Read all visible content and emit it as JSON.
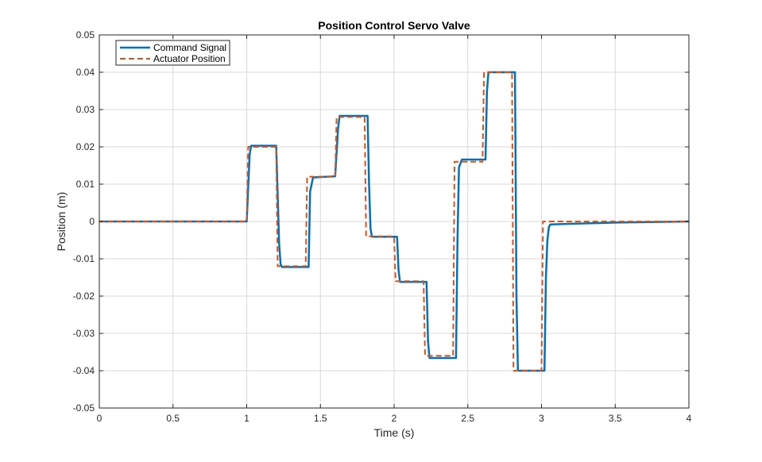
{
  "chart_data": {
    "type": "line",
    "title": "Position Control Servo Valve",
    "xlabel": "Time (s)",
    "ylabel": "Position (m)",
    "xlim": [
      0,
      4
    ],
    "ylim": [
      -0.05,
      0.05
    ],
    "xticks": [
      0,
      0.5,
      1,
      1.5,
      2,
      2.5,
      3,
      3.5,
      4
    ],
    "xtick_labels": [
      "0",
      "0.5",
      "1",
      "1.5",
      "2",
      "2.5",
      "3",
      "3.5",
      "4"
    ],
    "yticks": [
      -0.05,
      -0.04,
      -0.03,
      -0.02,
      -0.01,
      0,
      0.01,
      0.02,
      0.03,
      0.04,
      0.05
    ],
    "ytick_labels": [
      "-0.05",
      "-0.04",
      "-0.03",
      "-0.02",
      "-0.01",
      "0",
      "0.01",
      "0.02",
      "0.03",
      "0.04",
      "0.05"
    ],
    "grid": true,
    "legend_position": "top-left",
    "series": [
      {
        "name": "Command Signal",
        "color": "#0072BD",
        "style": "solid",
        "x": [
          0,
          1.0,
          1.02,
          1.03,
          1.2,
          1.22,
          1.23,
          1.24,
          1.42,
          1.43,
          1.45,
          1.6,
          1.62,
          1.63,
          1.82,
          1.83,
          1.84,
          1.85,
          2.02,
          2.03,
          2.04,
          2.22,
          2.23,
          2.24,
          2.42,
          2.43,
          2.44,
          2.46,
          2.62,
          2.63,
          2.64,
          2.82,
          2.83,
          2.84,
          3.02,
          3.03,
          3.04,
          3.05,
          3.06,
          3.2,
          3.5,
          4.0
        ],
        "y": [
          0,
          0,
          0.018,
          0.0203,
          0.0203,
          -0.006,
          -0.0115,
          -0.0122,
          -0.0122,
          0.008,
          0.0118,
          0.0121,
          0.025,
          0.0283,
          0.0283,
          0.01,
          -0.002,
          -0.0041,
          -0.0041,
          -0.013,
          -0.0162,
          -0.0162,
          -0.032,
          -0.0366,
          -0.0366,
          -0.005,
          0.0145,
          0.0166,
          0.0166,
          0.035,
          0.04,
          0.04,
          -0.02,
          -0.04,
          -0.04,
          -0.015,
          -0.005,
          -0.0015,
          -0.0008,
          -0.0006,
          -0.0003,
          0
        ]
      },
      {
        "name": "Actuator Position",
        "color": "#D95319",
        "style": "dashed",
        "x": [
          0,
          1.0,
          1.01,
          1.2,
          1.21,
          1.4,
          1.41,
          1.6,
          1.61,
          1.8,
          1.81,
          2.0,
          2.01,
          2.2,
          2.21,
          2.4,
          2.41,
          2.6,
          2.61,
          2.8,
          2.81,
          3.0,
          3.01,
          4.0
        ],
        "y": [
          0,
          0,
          0.02,
          0.02,
          -0.012,
          -0.012,
          0.012,
          0.012,
          0.028,
          0.028,
          -0.004,
          -0.004,
          -0.016,
          -0.016,
          -0.036,
          -0.036,
          0.016,
          0.016,
          0.04,
          0.04,
          -0.04,
          -0.04,
          0,
          0
        ]
      }
    ]
  }
}
